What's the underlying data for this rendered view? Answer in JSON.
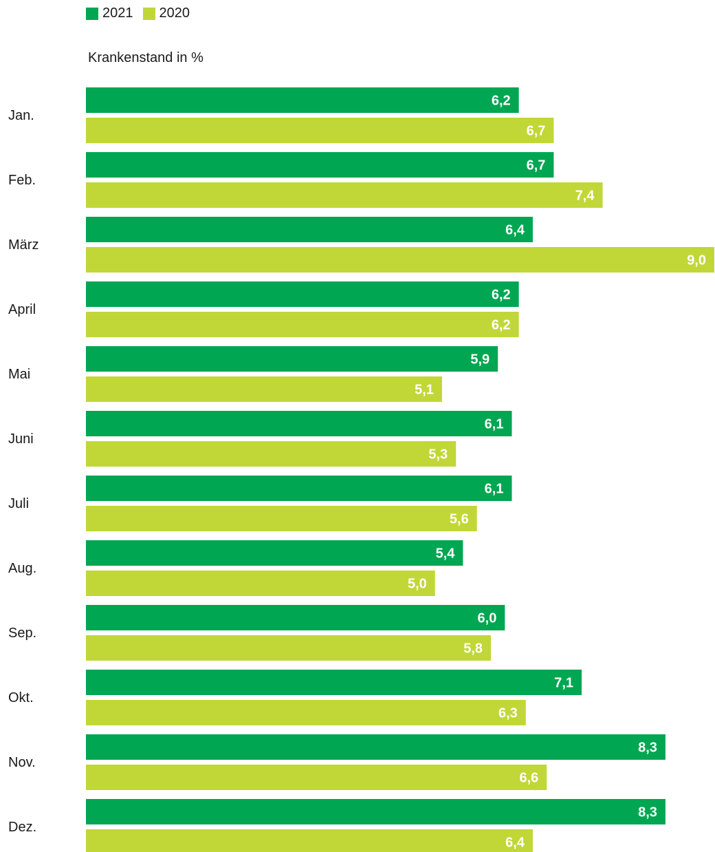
{
  "chart_data": {
    "type": "bar",
    "orientation": "horizontal",
    "ylabel": "Krankenstand in %",
    "categories": [
      "Jan.",
      "Feb.",
      "März",
      "April",
      "Mai",
      "Juni",
      "Juli",
      "Aug.",
      "Sep.",
      "Okt.",
      "Nov.",
      "Dez."
    ],
    "series": [
      {
        "name": "2021",
        "color": "#00a651",
        "values": [
          6.2,
          6.7,
          6.4,
          6.2,
          5.9,
          6.1,
          6.1,
          5.4,
          6.0,
          7.1,
          8.3,
          8.3
        ],
        "labels": [
          "6,2",
          "6,7",
          "6,4",
          "6,2",
          "5,9",
          "6,1",
          "6,1",
          "5,4",
          "6,0",
          "7,1",
          "8,3",
          "8,3"
        ]
      },
      {
        "name": "2020",
        "color": "#c1d737",
        "values": [
          6.7,
          7.4,
          9.0,
          6.2,
          5.1,
          5.3,
          5.6,
          5.0,
          5.8,
          6.3,
          6.6,
          6.4
        ],
        "labels": [
          "6,7",
          "7,4",
          "9,0",
          "6,2",
          "5,1",
          "5,3",
          "5,6",
          "5,0",
          "5,8",
          "6,3",
          "6,6",
          "6,4"
        ]
      }
    ],
    "xlim": [
      0,
      9.0
    ],
    "legend": "top-left",
    "grid": false
  }
}
